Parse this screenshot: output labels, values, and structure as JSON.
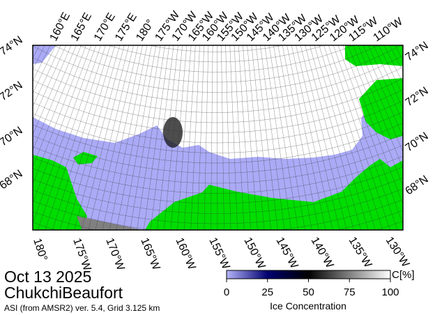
{
  "title": "Oct 13 2025",
  "region": "ChukchiBeaufort",
  "subtitle": "ASI (from AMSR2) ver. 5.4,  Grid 3.125 km",
  "map": {
    "top_lon_labels": [
      "160°E",
      "165°E",
      "170°E",
      "175°E",
      "180°",
      "175°W",
      "170°W",
      "165°W",
      "160°W",
      "155°W",
      "150°W",
      "145°W",
      "140°W",
      "135°W",
      "130°W",
      "125°W",
      "120°W",
      "115°W",
      "110°W"
    ],
    "bottom_lon_labels": [
      "180°",
      "175°W",
      "170°W",
      "165°W",
      "160°W",
      "155°W",
      "150°W",
      "145°W",
      "140°W",
      "135°W",
      "130°W"
    ],
    "left_lat_labels": [
      "74°N",
      "72°N",
      "70°N",
      "68°N"
    ],
    "right_lat_labels": [
      "74°N",
      "72°N",
      "70°N",
      "68°N"
    ]
  },
  "colorbar": {
    "label": "Ice Concentration",
    "unit": "C[%]",
    "range": [
      0,
      100
    ],
    "ticks": [
      0,
      25,
      50,
      75,
      100
    ]
  }
}
